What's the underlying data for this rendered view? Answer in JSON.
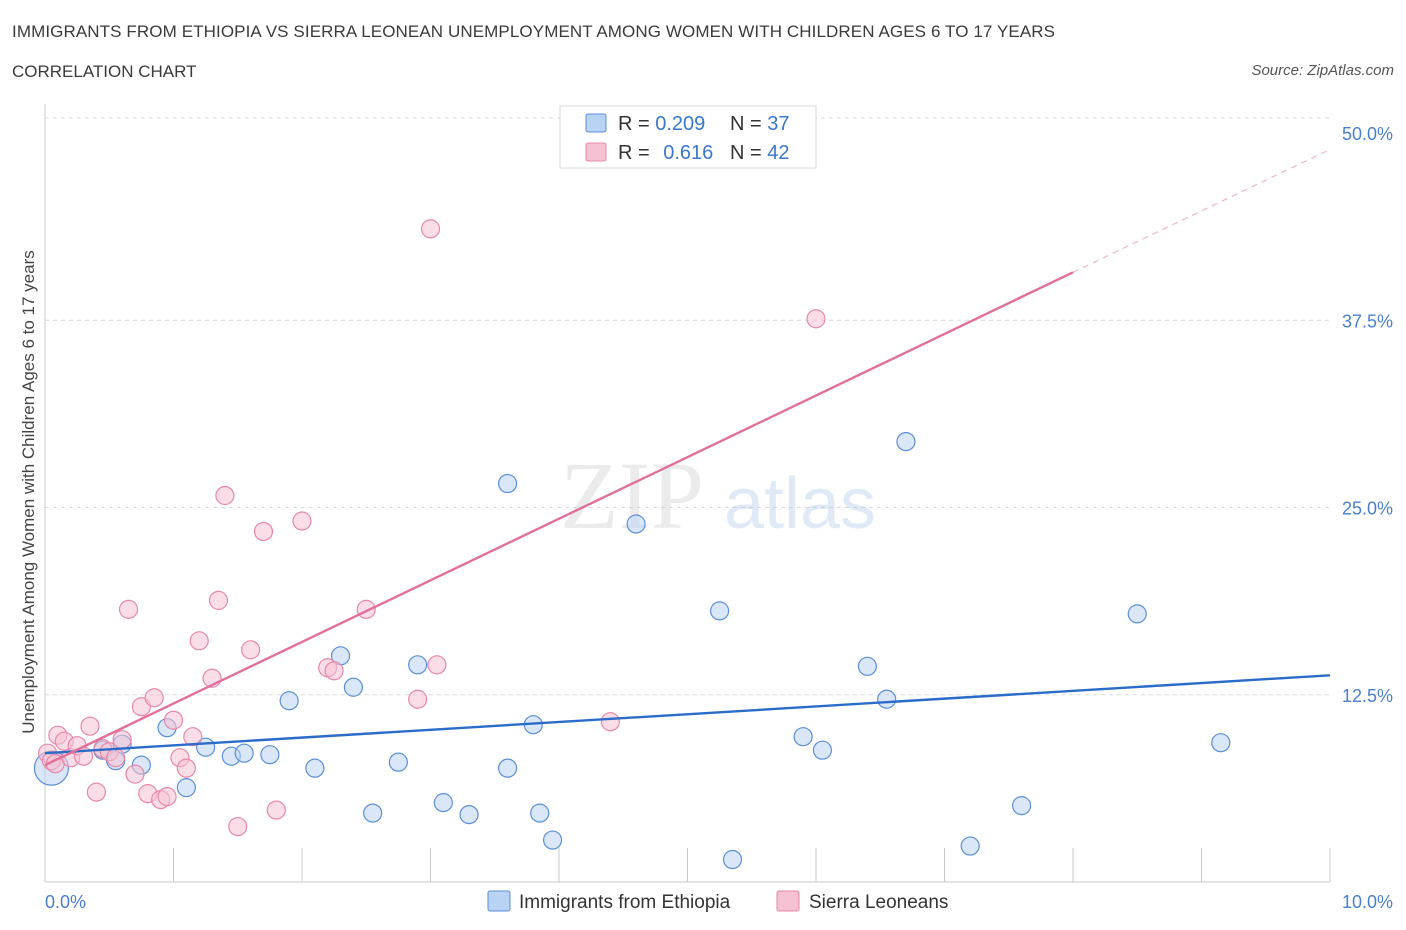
{
  "header": {
    "title": "IMMIGRANTS FROM ETHIOPIA VS SIERRA LEONEAN UNEMPLOYMENT AMONG WOMEN WITH CHILDREN AGES 6 TO 17 YEARS",
    "subtitle": "CORRELATION CHART",
    "source": "Source: ZipAtlas.com"
  },
  "watermark": {
    "zip": "ZIP",
    "atlas": "atlas"
  },
  "colors": {
    "ethiopia": "#5b8fd6",
    "ethiopia_fill": "#b9d3f4",
    "ethiopia_line": "#2b6cc9",
    "sierra": "#e888a8",
    "sierra_fill": "#f6c1d3",
    "sierra_line": "#e0709a",
    "grid": "#d9d9d9",
    "tick_label": "#4a7fd0"
  },
  "legend": {
    "rows": [
      {
        "r_label": "R = ",
        "r_value": "0.209",
        "n_label": "N = ",
        "n_value": "37"
      },
      {
        "r_label": "R = ",
        "r_value": "0.616",
        "n_label": "N = ",
        "n_value": "42"
      }
    ]
  },
  "chart_data": {
    "type": "scatter",
    "title": "IMMIGRANTS FROM ETHIOPIA VS SIERRA LEONEAN UNEMPLOYMENT AMONG WOMEN WITH CHILDREN AGES 6 TO 17 YEARS",
    "subtitle": "CORRELATION CHART",
    "xlabel": "",
    "ylabel": "Unemployment Among Women with Children Ages 6 to 17 years",
    "xlim": [
      0,
      10
    ],
    "ylim": [
      0,
      50
    ],
    "x_tick_labels": [
      "0.0%",
      "10.0%"
    ],
    "y_ticks": [
      12.5,
      25.0,
      37.5,
      50.0
    ],
    "y_tick_labels": [
      "12.5%",
      "25.0%",
      "37.5%",
      "50.0%"
    ],
    "grid": true,
    "legend_position": "top-center",
    "series": [
      {
        "name": "Immigrants from Ethiopia",
        "r": 0.209,
        "n": 37,
        "trend": {
          "x": [
            0.0,
            10.0
          ],
          "y": [
            8.6,
            13.8
          ]
        },
        "points": [
          {
            "x": 0.05,
            "y": 7.6,
            "big": true
          },
          {
            "x": 0.45,
            "y": 8.8
          },
          {
            "x": 0.55,
            "y": 8.1
          },
          {
            "x": 0.6,
            "y": 9.2
          },
          {
            "x": 0.75,
            "y": 7.8
          },
          {
            "x": 0.95,
            "y": 10.3
          },
          {
            "x": 1.1,
            "y": 6.3
          },
          {
            "x": 1.25,
            "y": 9.0
          },
          {
            "x": 1.45,
            "y": 8.4
          },
          {
            "x": 1.55,
            "y": 8.6
          },
          {
            "x": 1.75,
            "y": 8.5
          },
          {
            "x": 1.9,
            "y": 12.1
          },
          {
            "x": 2.1,
            "y": 7.6
          },
          {
            "x": 2.3,
            "y": 15.1
          },
          {
            "x": 2.4,
            "y": 13.0
          },
          {
            "x": 2.55,
            "y": 4.6
          },
          {
            "x": 2.75,
            "y": 8.0
          },
          {
            "x": 2.9,
            "y": 14.5
          },
          {
            "x": 3.1,
            "y": 5.3
          },
          {
            "x": 3.3,
            "y": 4.5
          },
          {
            "x": 3.6,
            "y": 7.6
          },
          {
            "x": 3.6,
            "y": 26.6
          },
          {
            "x": 3.8,
            "y": 10.5
          },
          {
            "x": 3.85,
            "y": 4.6
          },
          {
            "x": 3.95,
            "y": 2.8
          },
          {
            "x": 4.6,
            "y": 23.9
          },
          {
            "x": 5.25,
            "y": 18.1
          },
          {
            "x": 5.35,
            "y": 1.5
          },
          {
            "x": 5.9,
            "y": 9.7
          },
          {
            "x": 6.05,
            "y": 8.8
          },
          {
            "x": 6.4,
            "y": 14.4
          },
          {
            "x": 6.55,
            "y": 12.2
          },
          {
            "x": 6.7,
            "y": 29.4
          },
          {
            "x": 7.2,
            "y": 2.4
          },
          {
            "x": 7.6,
            "y": 5.1
          },
          {
            "x": 8.5,
            "y": 17.9
          },
          {
            "x": 9.15,
            "y": 9.3
          }
        ]
      },
      {
        "name": "Sierra Leoneans",
        "r": 0.616,
        "n": 42,
        "trend": {
          "x": [
            0.0,
            8.0
          ],
          "y": [
            7.8,
            40.7
          ]
        },
        "trend_extension": {
          "x": [
            8.0,
            10.0
          ],
          "y": [
            40.7,
            48.9
          ]
        },
        "points": [
          {
            "x": 0.02,
            "y": 8.6
          },
          {
            "x": 0.05,
            "y": 8.1
          },
          {
            "x": 0.08,
            "y": 7.9
          },
          {
            "x": 0.1,
            "y": 9.8
          },
          {
            "x": 0.15,
            "y": 9.4
          },
          {
            "x": 0.2,
            "y": 8.3
          },
          {
            "x": 0.25,
            "y": 9.1
          },
          {
            "x": 0.3,
            "y": 8.4
          },
          {
            "x": 0.35,
            "y": 10.4
          },
          {
            "x": 0.4,
            "y": 6.0
          },
          {
            "x": 0.45,
            "y": 8.9
          },
          {
            "x": 0.5,
            "y": 8.7
          },
          {
            "x": 0.55,
            "y": 8.3
          },
          {
            "x": 0.6,
            "y": 9.5
          },
          {
            "x": 0.65,
            "y": 18.2
          },
          {
            "x": 0.7,
            "y": 7.2
          },
          {
            "x": 0.75,
            "y": 11.7
          },
          {
            "x": 0.8,
            "y": 5.9
          },
          {
            "x": 0.85,
            "y": 12.3
          },
          {
            "x": 0.9,
            "y": 5.5
          },
          {
            "x": 0.95,
            "y": 5.7
          },
          {
            "x": 1.0,
            "y": 10.8
          },
          {
            "x": 1.05,
            "y": 8.3
          },
          {
            "x": 1.1,
            "y": 7.6
          },
          {
            "x": 1.15,
            "y": 9.7
          },
          {
            "x": 1.2,
            "y": 16.1
          },
          {
            "x": 1.3,
            "y": 13.6
          },
          {
            "x": 1.35,
            "y": 18.8
          },
          {
            "x": 1.4,
            "y": 25.8
          },
          {
            "x": 1.5,
            "y": 3.7
          },
          {
            "x": 1.6,
            "y": 15.5
          },
          {
            "x": 1.7,
            "y": 23.4
          },
          {
            "x": 1.8,
            "y": 4.8
          },
          {
            "x": 2.0,
            "y": 24.1
          },
          {
            "x": 2.2,
            "y": 14.3
          },
          {
            "x": 2.25,
            "y": 14.1
          },
          {
            "x": 2.5,
            "y": 18.2
          },
          {
            "x": 2.9,
            "y": 12.2
          },
          {
            "x": 3.05,
            "y": 14.5
          },
          {
            "x": 3.0,
            "y": 43.6
          },
          {
            "x": 4.4,
            "y": 10.7
          },
          {
            "x": 6.0,
            "y": 37.6
          }
        ]
      }
    ]
  }
}
